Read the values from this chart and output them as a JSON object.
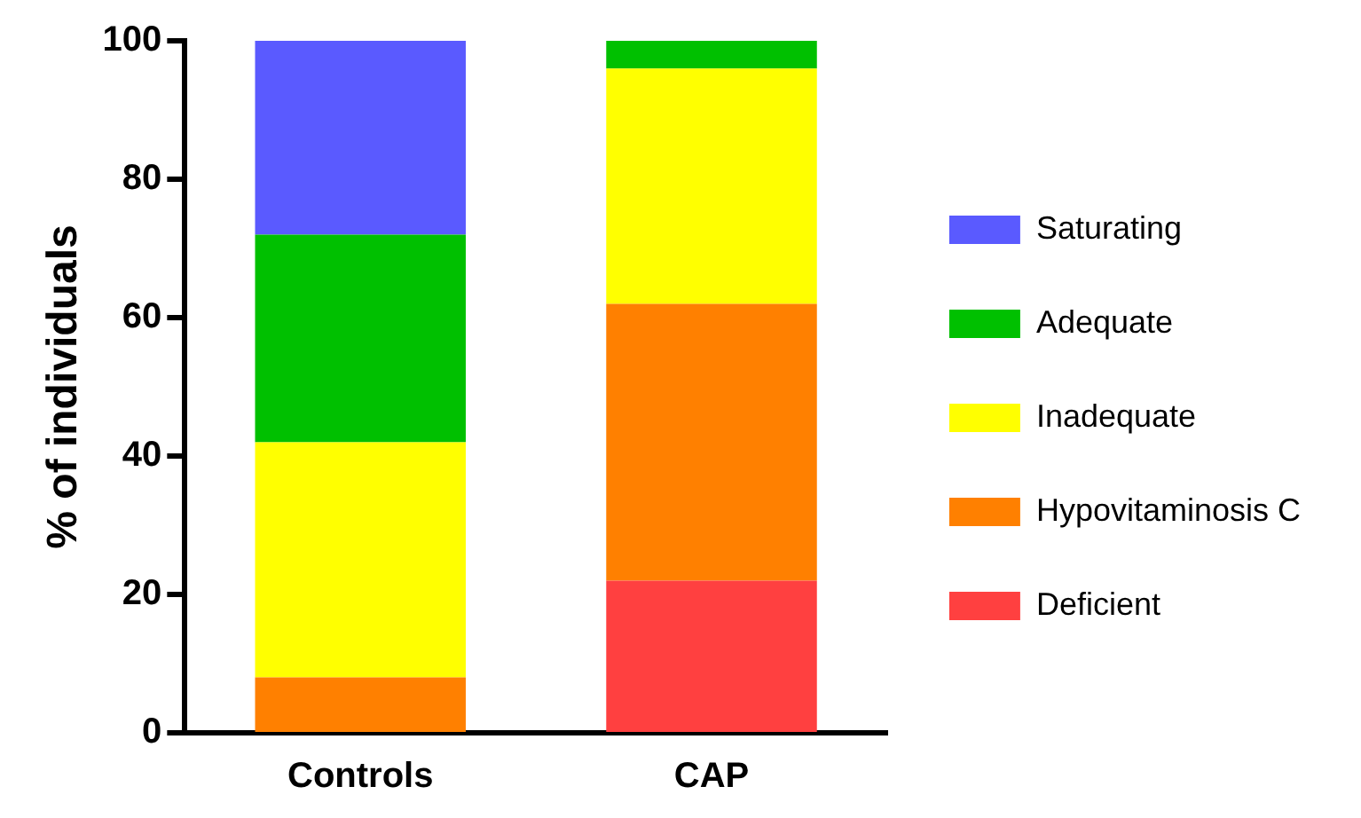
{
  "chart_data": {
    "type": "bar",
    "stacked": true,
    "ylabel": "% of individuals",
    "categories": [
      "Controls",
      "CAP"
    ],
    "series": [
      {
        "name": "Deficient",
        "color": "#ff4040",
        "values": [
          0,
          22
        ]
      },
      {
        "name": "Hypovitaminosis C",
        "color": "#ff8000",
        "values": [
          8,
          40
        ]
      },
      {
        "name": "Inadequate",
        "color": "#ffff00",
        "values": [
          34,
          34
        ]
      },
      {
        "name": "Adequate",
        "color": "#00c000",
        "values": [
          30,
          4
        ]
      },
      {
        "name": "Saturating",
        "color": "#5a5aff",
        "values": [
          28,
          0
        ]
      }
    ],
    "ylim": [
      0,
      100
    ],
    "yticks": [
      0,
      20,
      40,
      60,
      80,
      100
    ],
    "grid": false,
    "legend": "right"
  }
}
